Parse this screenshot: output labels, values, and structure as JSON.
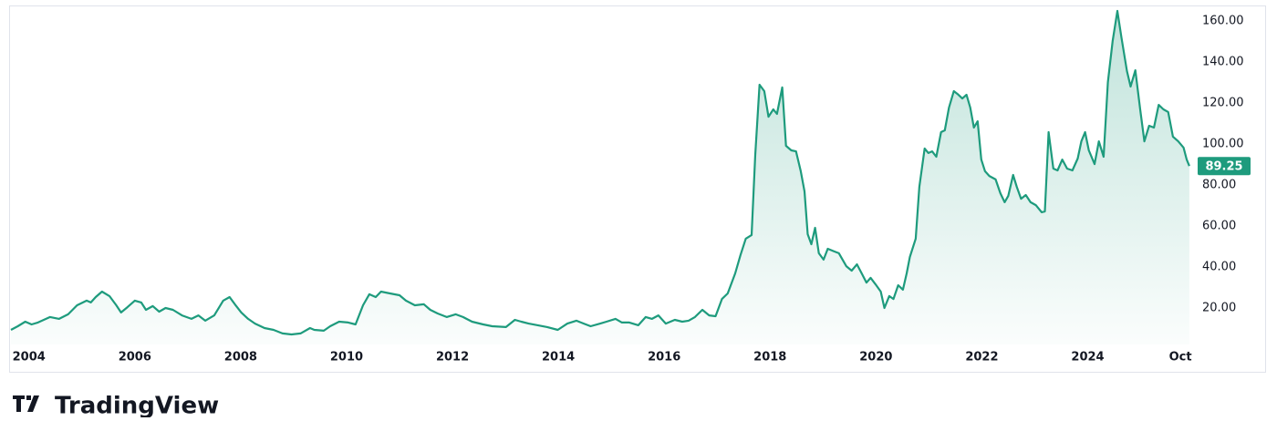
{
  "chart_data": {
    "type": "area-line",
    "color": "#1e9b7d",
    "x": [
      2003.66,
      2003.79,
      2003.93,
      2004.05,
      2004.17,
      2004.4,
      2004.57,
      2004.74,
      2004.91,
      2005.09,
      2005.17,
      2005.26,
      2005.38,
      2005.52,
      2005.65,
      2005.74,
      2005.86,
      2006.0,
      2006.12,
      2006.21,
      2006.34,
      2006.46,
      2006.58,
      2006.72,
      2006.89,
      2007.07,
      2007.2,
      2007.33,
      2007.5,
      2007.67,
      2007.79,
      2007.89,
      2008.01,
      2008.14,
      2008.27,
      2008.45,
      2008.62,
      2008.79,
      2008.96,
      2009.13,
      2009.31,
      2009.39,
      2009.57,
      2009.69,
      2009.86,
      2010.03,
      2010.17,
      2010.31,
      2010.43,
      2010.55,
      2010.65,
      2010.82,
      2011.0,
      2011.12,
      2011.29,
      2011.46,
      2011.58,
      2011.72,
      2011.89,
      2012.06,
      2012.2,
      2012.37,
      2012.58,
      2012.75,
      2013.01,
      2013.18,
      2013.3,
      2013.44,
      2013.61,
      2013.79,
      2013.99,
      2014.17,
      2014.34,
      2014.48,
      2014.61,
      2014.79,
      2014.91,
      2015.08,
      2015.2,
      2015.34,
      2015.51,
      2015.65,
      2015.77,
      2015.89,
      2016.03,
      2016.2,
      2016.34,
      2016.46,
      2016.58,
      2016.72,
      2016.85,
      2016.97,
      2017.09,
      2017.2,
      2017.34,
      2017.44,
      2017.54,
      2017.65,
      2017.72,
      2017.8,
      2017.89,
      2017.97,
      2018.06,
      2018.13,
      2018.23,
      2018.3,
      2018.4,
      2018.49,
      2018.58,
      2018.65,
      2018.71,
      2018.78,
      2018.85,
      2018.92,
      2019.01,
      2019.09,
      2019.21,
      2019.3,
      2019.44,
      2019.54,
      2019.64,
      2019.73,
      2019.82,
      2019.9,
      2019.99,
      2020.09,
      2020.16,
      2020.25,
      2020.33,
      2020.42,
      2020.51,
      2020.58,
      2020.64,
      2020.75,
      2020.82,
      2020.92,
      2020.99,
      2021.06,
      2021.14,
      2021.23,
      2021.3,
      2021.38,
      2021.47,
      2021.54,
      2021.63,
      2021.71,
      2021.78,
      2021.85,
      2021.92,
      2021.99,
      2022.06,
      2022.14,
      2022.26,
      2022.35,
      2022.43,
      2022.5,
      2022.59,
      2022.66,
      2022.74,
      2022.83,
      2022.92,
      2023.02,
      2023.13,
      2023.19,
      2023.26,
      2023.35,
      2023.43,
      2023.52,
      2023.61,
      2023.71,
      2023.81,
      2023.88,
      2023.95,
      2024.02,
      2024.13,
      2024.21,
      2024.3,
      2024.38,
      2024.47,
      2024.56,
      2024.64,
      2024.74,
      2024.81,
      2024.9,
      2024.99,
      2025.07,
      2025.16,
      2025.25,
      2025.34,
      2025.43,
      2025.52,
      2025.61,
      2025.71,
      2025.81,
      2025.87,
      2025.92
    ],
    "values": [
      9.3,
      11.1,
      13.3,
      12.0,
      12.9,
      15.6,
      14.7,
      16.9,
      21.3,
      23.6,
      22.7,
      25.3,
      28.0,
      25.8,
      21.3,
      17.8,
      20.4,
      23.6,
      22.7,
      19.1,
      20.9,
      18.2,
      20.0,
      19.1,
      16.4,
      14.7,
      16.4,
      13.8,
      16.4,
      23.6,
      25.3,
      21.8,
      17.8,
      14.7,
      12.4,
      10.2,
      9.3,
      7.6,
      7.1,
      7.6,
      10.2,
      9.3,
      8.9,
      11.1,
      13.3,
      12.9,
      12.0,
      21.3,
      26.7,
      25.3,
      28.0,
      27.1,
      26.2,
      23.6,
      21.3,
      21.8,
      19.1,
      17.3,
      15.6,
      16.9,
      15.6,
      13.3,
      12.0,
      11.1,
      10.7,
      14.2,
      13.3,
      12.4,
      11.6,
      10.7,
      9.3,
      12.4,
      13.8,
      12.4,
      11.1,
      12.4,
      13.3,
      14.7,
      12.9,
      12.9,
      11.6,
      15.6,
      14.7,
      16.4,
      12.4,
      14.2,
      13.3,
      13.8,
      15.6,
      19.1,
      16.4,
      16.0,
      24.4,
      27.1,
      36.9,
      45.8,
      53.8,
      55.6,
      94.7,
      128.9,
      125.8,
      113.3,
      116.9,
      114.7,
      127.6,
      99.1,
      96.9,
      96.4,
      86.7,
      76.9,
      56.0,
      51.1,
      59.1,
      46.7,
      43.6,
      48.9,
      47.6,
      46.7,
      40.4,
      38.2,
      41.3,
      36.9,
      32.4,
      34.7,
      31.6,
      28.0,
      20.0,
      25.8,
      24.4,
      31.1,
      28.9,
      36.9,
      44.9,
      53.8,
      79.1,
      97.8,
      95.6,
      96.4,
      93.8,
      105.8,
      106.7,
      117.8,
      125.8,
      124.4,
      122.2,
      124.0,
      117.8,
      108.0,
      111.1,
      92.4,
      86.7,
      84.4,
      82.7,
      76.0,
      71.6,
      74.7,
      84.9,
      79.1,
      73.3,
      75.1,
      71.6,
      70.2,
      66.7,
      67.1,
      105.8,
      88.0,
      87.1,
      92.4,
      88.0,
      87.1,
      92.9,
      101.3,
      105.8,
      96.9,
      90.2,
      101.3,
      93.8,
      130.2,
      150.2,
      164.9,
      151.6,
      135.6,
      128.0,
      136.0,
      116.9,
      101.3,
      108.9,
      108.0,
      119.1,
      116.9,
      115.6,
      103.6,
      101.3,
      98.2,
      92.4,
      89.25
    ],
    "xlim": [
      2003.66,
      2025.99
    ],
    "ylim": [
      2.2,
      166.7
    ],
    "xticks": [
      2004,
      2006,
      2008,
      2010,
      2012,
      2014,
      2016,
      2018,
      2020,
      2022,
      2024,
      {
        "value": 2025.75,
        "label": "Oct"
      }
    ],
    "yticks": [
      {
        "value": 20,
        "label": "20.00"
      },
      {
        "value": 40,
        "label": "40.00"
      },
      {
        "value": 60,
        "label": "60.00"
      },
      {
        "value": 80,
        "label": "80.00"
      },
      {
        "value": 100,
        "label": "100.00"
      },
      {
        "value": 120,
        "label": "120.00"
      },
      {
        "value": 140,
        "label": "140.00"
      },
      {
        "value": 160,
        "label": "160.00"
      }
    ]
  },
  "watermark": "TradingView"
}
